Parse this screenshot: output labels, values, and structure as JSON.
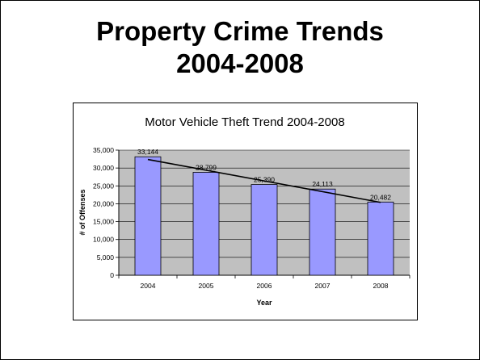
{
  "slide": {
    "title_line1": "Property Crime Trends",
    "title_line2": "2004-2008"
  },
  "chart_data": {
    "type": "bar",
    "title": "Motor Vehicle Theft Trend 2004-2008",
    "xlabel": "Year",
    "ylabel": "# of Offenses",
    "categories": [
      "2004",
      "2005",
      "2006",
      "2007",
      "2008"
    ],
    "values": [
      33144,
      28799,
      25390,
      24113,
      20482
    ],
    "data_labels": [
      "33,144",
      "28,799",
      "25,390",
      "24,113",
      "20,482"
    ],
    "ylim": [
      0,
      35000
    ],
    "yticks": [
      0,
      5000,
      10000,
      15000,
      20000,
      25000,
      30000,
      35000
    ],
    "ytick_labels": [
      "0",
      "5,000",
      "10,000",
      "15,000",
      "20,000",
      "25,000",
      "30,000",
      "35,000"
    ],
    "grid": true,
    "trendline": "linear",
    "bar_color": "#9999FF",
    "plot_background": "#C0C0C0"
  }
}
